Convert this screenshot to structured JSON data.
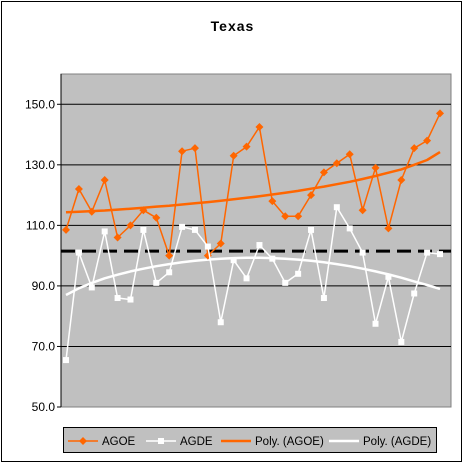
{
  "title": "Texas",
  "chart_data": {
    "type": "line",
    "title": "Texas",
    "ylim": [
      50,
      160
    ],
    "yticks": [
      "50.0",
      "70.0",
      "90.0",
      "110.0",
      "130.0",
      "150.0"
    ],
    "ytick_values": [
      50,
      70,
      90,
      110,
      130,
      150
    ],
    "reference_line": 101.5,
    "grid": true,
    "legend_position": "bottom",
    "colors": {
      "plot_bg": "#c0c0c0",
      "agoe": "#ff6600",
      "agde": "#ffffff",
      "ref": "#000000"
    },
    "series": [
      {
        "name": "AGOE",
        "marker": "diamond",
        "values": [
          108.5,
          122,
          114.5,
          125,
          106,
          110,
          115,
          112.5,
          100,
          134.5,
          135.5,
          100,
          104,
          133,
          136,
          142.5,
          118,
          113,
          113,
          120,
          127.5,
          130.5,
          133.5,
          115,
          129,
          109,
          125,
          135.5,
          138,
          147
        ]
      },
      {
        "name": "AGDE",
        "marker": "square",
        "values": [
          65.5,
          101,
          89.5,
          108,
          86,
          85.5,
          108.5,
          91,
          94.5,
          109.5,
          108.5,
          103,
          78,
          98.5,
          92.5,
          103.5,
          99,
          91,
          94,
          108.5,
          86,
          116,
          109,
          101,
          77.5,
          93,
          71.5,
          87.5,
          101,
          100.5
        ]
      },
      {
        "name": "Poly. (AGOE)",
        "type": "trend",
        "values": [
          114.3,
          114.5,
          114.7,
          114.9,
          115.2,
          115.5,
          115.8,
          116.2,
          116.5,
          116.9,
          117.3,
          117.7,
          118.1,
          118.6,
          119.1,
          119.6,
          120.2,
          120.8,
          121.4,
          122.1,
          122.8,
          123.6,
          124.4,
          125.3,
          126.3,
          127.4,
          128.5,
          130,
          131.6,
          134.2
        ]
      },
      {
        "name": "Poly. (AGDE)",
        "type": "trend",
        "values": [
          87,
          89.2,
          91,
          92.5,
          93.7,
          94.8,
          95.7,
          96.5,
          97.2,
          97.8,
          98.3,
          98.7,
          99,
          99.2,
          99.3,
          99.3,
          99.2,
          99,
          98.7,
          98.3,
          97.8,
          97.2,
          96.5,
          95.7,
          94.8,
          93.8,
          92.7,
          91.5,
          90.3,
          89
        ]
      }
    ]
  }
}
